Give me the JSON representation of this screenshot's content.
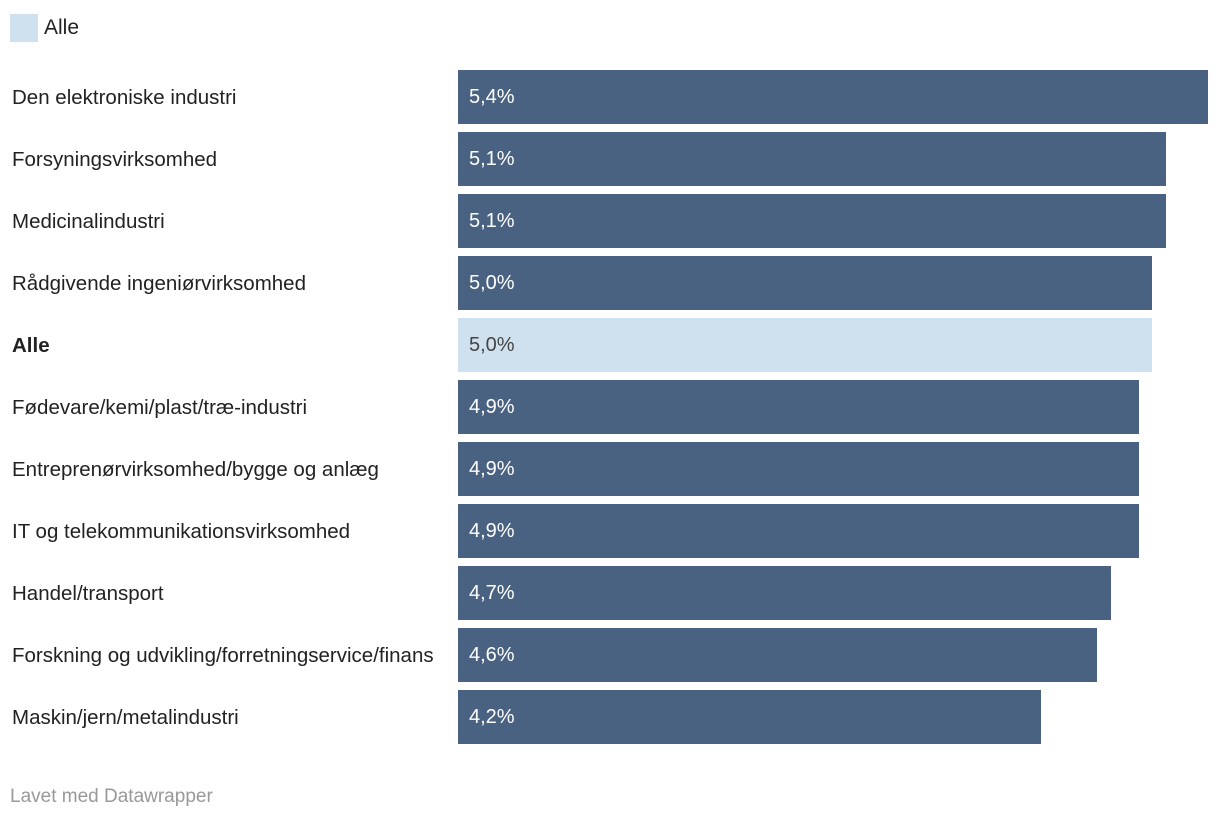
{
  "chart_data": {
    "type": "bar",
    "orientation": "horizontal",
    "categories": [
      "Den elektroniske industri",
      "Forsyningsvirksomhed",
      "Medicinalindustri",
      "Rådgivende ingeniørvirksomhed",
      "Alle",
      "Fødevare/kemi/plast/træ-industri",
      "Entreprenørvirksomhed/bygge og anlæg",
      "IT og telekommunikationsvirksomhed",
      "Handel/transport",
      "Forskning og udvikling/forretningservice/finans",
      "Maskin/jern/metalindustri"
    ],
    "values": [
      5.4,
      5.1,
      5.1,
      5.0,
      5.0,
      4.9,
      4.9,
      4.9,
      4.7,
      4.6,
      4.2
    ],
    "value_labels": [
      "5,4%",
      "5,1%",
      "5,1%",
      "5,0%",
      "5,0%",
      "4,9%",
      "4,9%",
      "4,9%",
      "4,7%",
      "4,6%",
      "4,2%"
    ],
    "color": "#4a6282",
    "highlight": "Alle",
    "highlight_color": "#cfe1ef",
    "xlim": [
      0,
      5.4
    ],
    "footer": "Lavet med Datawrapper"
  }
}
